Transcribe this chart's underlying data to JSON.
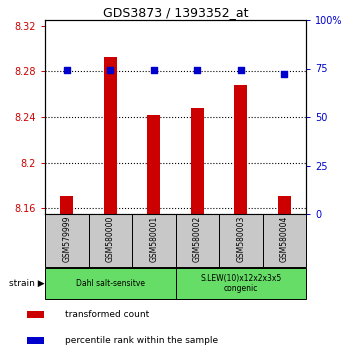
{
  "title": "GDS3873 / 1393352_at",
  "samples": [
    "GSM579999",
    "GSM580000",
    "GSM580001",
    "GSM580002",
    "GSM580003",
    "GSM580004"
  ],
  "red_values": [
    8.171,
    8.293,
    8.242,
    8.248,
    8.268,
    8.171
  ],
  "blue_values": [
    74,
    74,
    74,
    74,
    74,
    72
  ],
  "ylim_left": [
    8.155,
    8.325
  ],
  "ylim_right": [
    0,
    100
  ],
  "yticks_left": [
    8.16,
    8.2,
    8.24,
    8.28,
    8.32
  ],
  "yticks_right": [
    0,
    25,
    50,
    75,
    100
  ],
  "ytick_labels_left": [
    "8.16",
    "8.2",
    "8.24",
    "8.28",
    "8.32"
  ],
  "ytick_labels_right": [
    "0",
    "25",
    "50",
    "75",
    "100%"
  ],
  "groups": [
    {
      "label": "Dahl salt-sensitve",
      "span": [
        0,
        2
      ],
      "color": "#66DD66"
    },
    {
      "label": "S.LEW(10)x12x2x3x5\ncongenic",
      "span": [
        3,
        5
      ],
      "color": "#66DD66"
    }
  ],
  "legend_items": [
    {
      "color": "#CC0000",
      "label": "transformed count"
    },
    {
      "color": "#0000CC",
      "label": "percentile rank within the sample"
    }
  ],
  "bar_color": "#CC0000",
  "dot_color": "#0000CC",
  "bar_bottom": 8.155,
  "bg_color": "#ffffff",
  "tick_color_left": "#CC0000",
  "tick_color_right": "#0000CC",
  "bar_width": 0.3
}
